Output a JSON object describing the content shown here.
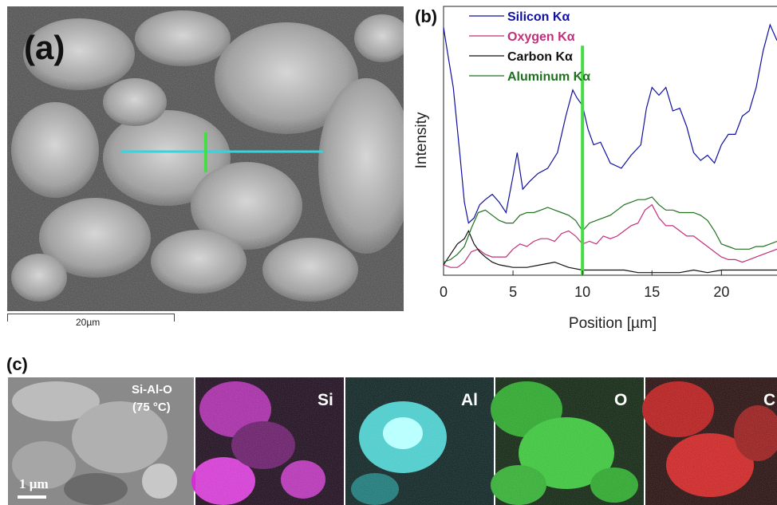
{
  "panel_a": {
    "label": "(a)",
    "scalebar_text": "20µm"
  },
  "panel_b": {
    "label": "(b)"
  },
  "panel_c": {
    "label": "(c)",
    "sample_label_line1": "Si-Al-O",
    "sample_label_line2": "(75 °C)",
    "scale_text": "1 µm",
    "maps": [
      {
        "label": "Si",
        "color": "#e000e0"
      },
      {
        "label": "Al",
        "color": "#10e0e0"
      },
      {
        "label": "O",
        "color": "#20d020"
      },
      {
        "label": "C",
        "color": "#e01010"
      }
    ]
  },
  "chart_data": {
    "type": "line",
    "xlabel": "Position [µm]",
    "ylabel": "Intensity",
    "xlim": [
      0,
      24
    ],
    "x_ticks": [
      0,
      5,
      10,
      15,
      20
    ],
    "marker_x": 10,
    "legend_position": "top-left",
    "series": [
      {
        "name": "Silicon Kα",
        "color": "#1010a0",
        "x": [
          0,
          0.3,
          0.7,
          1.2,
          1.5,
          1.8,
          2.2,
          2.6,
          3.0,
          3.5,
          4.0,
          4.5,
          5.0,
          5.3,
          5.7,
          6.2,
          6.8,
          7.5,
          8.2,
          8.8,
          9.3,
          9.6,
          10.0,
          10.4,
          10.8,
          11.3,
          12.0,
          12.8,
          13.5,
          14.2,
          14.6,
          15.0,
          15.5,
          16.0,
          16.5,
          17.0,
          17.5,
          18.0,
          18.5,
          19.0,
          19.5,
          20.0,
          20.5,
          21.0,
          21.5,
          22.0,
          22.5,
          23.0,
          23.5,
          24.0
        ],
        "y": [
          95,
          85,
          72,
          45,
          28,
          20,
          22,
          27,
          29,
          31,
          28,
          24,
          38,
          47,
          33,
          36,
          39,
          41,
          47,
          61,
          71,
          68,
          65,
          56,
          50,
          51,
          43,
          41,
          46,
          50,
          64,
          72,
          69,
          72,
          63,
          64,
          57,
          47,
          44,
          46,
          43,
          50,
          54,
          54,
          61,
          63,
          72,
          86,
          96,
          90
        ]
      },
      {
        "name": "Oxygen Kα",
        "color": "#c0307a",
        "x": [
          0,
          0.5,
          1.0,
          1.5,
          2.0,
          2.5,
          3.0,
          3.5,
          4.0,
          4.5,
          5.0,
          5.5,
          6.0,
          6.5,
          7.0,
          7.5,
          8.0,
          8.5,
          9.0,
          9.5,
          10.0,
          10.5,
          11.0,
          11.5,
          12.0,
          12.5,
          13.0,
          13.5,
          14.0,
          14.5,
          15.0,
          15.5,
          16.0,
          16.5,
          17.0,
          17.5,
          18.0,
          18.5,
          19.0,
          19.5,
          20.0,
          20.5,
          21.0,
          21.5,
          22.0,
          22.5,
          23.0,
          23.5,
          24.0
        ],
        "y": [
          4,
          3,
          3,
          5,
          9,
          10,
          8,
          7,
          7,
          7,
          10,
          12,
          11,
          13,
          14,
          14,
          13,
          16,
          17,
          15,
          12,
          13,
          12,
          15,
          14,
          15,
          17,
          19,
          20,
          25,
          27,
          22,
          19,
          19,
          17,
          15,
          15,
          13,
          11,
          9,
          7,
          6,
          6,
          5,
          6,
          7,
          8,
          9,
          10
        ]
      },
      {
        "name": "Carbon Kα",
        "color": "#111111",
        "x": [
          0,
          0.5,
          1.0,
          1.5,
          1.8,
          2.2,
          2.6,
          3.0,
          3.5,
          4.0,
          5.0,
          6.0,
          7.0,
          8.0,
          9.0,
          10.0,
          11.0,
          12.0,
          13.0,
          14.0,
          15.0,
          16.0,
          17.0,
          18.0,
          19.0,
          20.0,
          21.0,
          22.0,
          23.0,
          24.0
        ],
        "y": [
          4,
          8,
          12,
          14,
          17,
          12,
          9,
          7,
          5,
          4,
          3,
          3,
          4,
          5,
          3,
          2,
          2,
          2,
          2,
          1,
          1,
          1,
          1,
          2,
          1,
          2,
          2,
          2,
          2,
          2
        ]
      },
      {
        "name": "Aluminum Kα",
        "color": "#207020",
        "x": [
          0,
          0.5,
          1.0,
          1.5,
          2.0,
          2.5,
          3.0,
          3.5,
          4.0,
          4.5,
          5.0,
          5.5,
          6.0,
          6.5,
          7.0,
          7.5,
          8.0,
          8.5,
          9.0,
          9.5,
          10.0,
          10.5,
          11.0,
          11.5,
          12.0,
          12.5,
          13.0,
          13.5,
          14.0,
          14.5,
          15.0,
          15.5,
          16.0,
          16.5,
          17.0,
          17.5,
          18.0,
          18.5,
          19.0,
          19.5,
          20.0,
          20.5,
          21.0,
          21.5,
          22.0,
          22.5,
          23.0,
          23.5,
          24.0
        ],
        "y": [
          5,
          6,
          8,
          11,
          18,
          24,
          25,
          23,
          21,
          20,
          20,
          23,
          24,
          24,
          25,
          26,
          25,
          24,
          23,
          21,
          17,
          20,
          21,
          22,
          23,
          25,
          27,
          28,
          29,
          29,
          30,
          27,
          25,
          25,
          24,
          24,
          24,
          23,
          21,
          17,
          12,
          11,
          10,
          10,
          10,
          11,
          11,
          12,
          13
        ]
      }
    ]
  }
}
